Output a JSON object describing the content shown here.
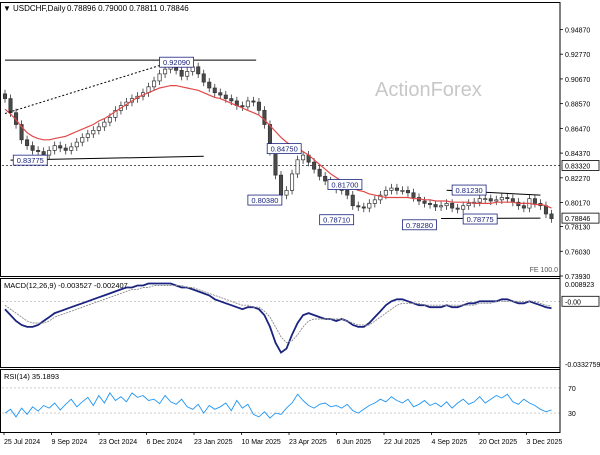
{
  "header": {
    "title_arrow": "▼",
    "symbol_label": "USDCHF,Daily",
    "quote_values": "0.78896 0.79000 0.78811 0.78846"
  },
  "watermark": "ActionForex",
  "colors": {
    "bull_candle": "#4a4a4a",
    "bear_candle": "#4a4a4a",
    "moving_average": "#e04848",
    "macd_main": "#1a237e",
    "macd_signal": "#8c8c8c",
    "rsi_line": "#2196f3",
    "trend_line": "#000000",
    "label_border": "#1a237e",
    "label_text": "#1a237e",
    "separator": "#000000",
    "grid_line": "#b0b0b0"
  },
  "chart_data": [
    {
      "type": "candlestick",
      "name": "price-panel",
      "ylim": [
        0.7393,
        0.9593
      ],
      "y_ticks": [
        "0.94870",
        "0.92770",
        "0.90670",
        "0.88570",
        "0.86470",
        "0.84370",
        "0.82270",
        "0.80170",
        "0.78130",
        "0.76030",
        "0.73930"
      ],
      "x_ticks": [
        "25 Jul 2024",
        "9 Sep 2024",
        "23 Oct 2024",
        "6 Dec 2024",
        "23 Jan 2025",
        "10 Mar 2025",
        "23 Apr 2025",
        "6 Jun 2025",
        "22 Jul 2025",
        "4 Sep 2025",
        "20 Oct 2025",
        "3 Dec 2025"
      ],
      "x_range": [
        0,
        100
      ],
      "closes": [
        0.89,
        0.878,
        0.868,
        0.855,
        0.85,
        0.846,
        0.845,
        0.842,
        0.846,
        0.85,
        0.848,
        0.846,
        0.849,
        0.853,
        0.857,
        0.86,
        0.863,
        0.866,
        0.87,
        0.874,
        0.88,
        0.884,
        0.887,
        0.89,
        0.892,
        0.895,
        0.9,
        0.905,
        0.911,
        0.915,
        0.917,
        0.914,
        0.909,
        0.913,
        0.917,
        0.911,
        0.904,
        0.899,
        0.895,
        0.893,
        0.89,
        0.888,
        0.884,
        0.883,
        0.888,
        0.887,
        0.88,
        0.868,
        0.845,
        0.825,
        0.808,
        0.812,
        0.826,
        0.838,
        0.842,
        0.836,
        0.83,
        0.824,
        0.82,
        0.818,
        0.813,
        0.812,
        0.808,
        0.799,
        0.798,
        0.797,
        0.801,
        0.804,
        0.808,
        0.812,
        0.814,
        0.812,
        0.812,
        0.81,
        0.806,
        0.803,
        0.801,
        0.8,
        0.798,
        0.799,
        0.801,
        0.797,
        0.796,
        0.799,
        0.801,
        0.802,
        0.805,
        0.805,
        0.803,
        0.804,
        0.806,
        0.805,
        0.802,
        0.799,
        0.797,
        0.805,
        0.801,
        0.799,
        0.792,
        0.788
      ],
      "moving_average": [
        0.881,
        0.877,
        0.872,
        0.866,
        0.861,
        0.858,
        0.856,
        0.855,
        0.855,
        0.856,
        0.857,
        0.858,
        0.86,
        0.862,
        0.864,
        0.866,
        0.868,
        0.871,
        0.873,
        0.876,
        0.879,
        0.882,
        0.885,
        0.888,
        0.891,
        0.893,
        0.895,
        0.897,
        0.899,
        0.9,
        0.901,
        0.901,
        0.9,
        0.899,
        0.898,
        0.897,
        0.895,
        0.893,
        0.891,
        0.89,
        0.888,
        0.886,
        0.884,
        0.882,
        0.88,
        0.878,
        0.876,
        0.872,
        0.867,
        0.862,
        0.857,
        0.853,
        0.85,
        0.848,
        0.845,
        0.842,
        0.838,
        0.834,
        0.83,
        0.826,
        0.823,
        0.82,
        0.817,
        0.814,
        0.812,
        0.811,
        0.809,
        0.808,
        0.807,
        0.806,
        0.806,
        0.806,
        0.806,
        0.806,
        0.805,
        0.805,
        0.804,
        0.804,
        0.803,
        0.803,
        0.803,
        0.802,
        0.802,
        0.802,
        0.802,
        0.801,
        0.801,
        0.801,
        0.801,
        0.802,
        0.802,
        0.802,
        0.802,
        0.801,
        0.801,
        0.801,
        0.8,
        0.8,
        0.799,
        0.797
      ],
      "horizontal_level": {
        "value": 0.8332,
        "label": "0.83320"
      },
      "current_price": {
        "value": 0.78846,
        "label": "0.78846"
      },
      "trend_lines": [
        {
          "style": "solid",
          "points": [
            [
              0,
              0.9227
            ],
            [
              45.5,
              0.9227
            ]
          ]
        },
        {
          "style": "dashed",
          "points": [
            [
              0,
              0.8773
            ],
            [
              30.0,
              0.921
            ]
          ]
        },
        {
          "style": "solid",
          "points": [
            [
              1,
              0.8377
            ],
            [
              36.0,
              0.841
            ]
          ]
        },
        {
          "style": "solid",
          "points": [
            [
              80.0,
              0.8121
            ],
            [
              97.0,
              0.808
            ]
          ]
        },
        {
          "style": "solid",
          "points": [
            [
              79.0,
              0.7881
            ],
            [
              97.0,
              0.7885
            ]
          ]
        }
      ],
      "price_labels": [
        {
          "text": "0.92090",
          "x": 28.0,
          "y": 0.9209
        },
        {
          "text": "0.83775",
          "x": 1.5,
          "y": 0.8377
        },
        {
          "text": "0.84750",
          "x": 47.5,
          "y": 0.8475
        },
        {
          "text": "0.80380",
          "x": 44.0,
          "y": 0.8038
        },
        {
          "text": "0.78710",
          "x": 57.0,
          "y": 0.7871
        },
        {
          "text": "0.81700",
          "x": 58.5,
          "y": 0.817
        },
        {
          "text": "0.78280",
          "x": 72.0,
          "y": 0.7828
        },
        {
          "text": "0.81230",
          "x": 81.0,
          "y": 0.8123
        },
        {
          "text": "0.78775",
          "x": 83.0,
          "y": 0.7877
        }
      ],
      "annotation": "FE 100.0"
    },
    {
      "type": "line",
      "name": "macd-panel",
      "label": "MACD(12,26,9) -0.003527 -0.002407",
      "ylim": [
        -0.0333,
        0.0118
      ],
      "y_ticks": [
        "0.008923",
        "0.00",
        "-0.0332759"
      ],
      "zero_line": 0,
      "current_label": "-0.00",
      "series": [
        {
          "role": "macd",
          "values": [
            -0.004,
            -0.007,
            -0.01,
            -0.012,
            -0.013,
            -0.013,
            -0.012,
            -0.01,
            -0.008,
            -0.006,
            -0.005,
            -0.004,
            -0.003,
            -0.002,
            -0.001,
            0.0,
            0.001,
            0.002,
            0.003,
            0.004,
            0.005,
            0.006,
            0.007,
            0.007,
            0.008,
            0.008,
            0.009,
            0.009,
            0.009,
            0.009,
            0.009,
            0.008,
            0.007,
            0.007,
            0.006,
            0.005,
            0.004,
            0.003,
            0.001,
            0.0,
            -0.001,
            -0.002,
            -0.003,
            -0.004,
            -0.003,
            -0.003,
            -0.004,
            -0.007,
            -0.013,
            -0.021,
            -0.026,
            -0.024,
            -0.017,
            -0.011,
            -0.007,
            -0.006,
            -0.007,
            -0.008,
            -0.009,
            -0.009,
            -0.01,
            -0.009,
            -0.01,
            -0.012,
            -0.013,
            -0.013,
            -0.011,
            -0.008,
            -0.005,
            -0.002,
            0.0,
            0.001,
            0.001,
            0.0,
            -0.001,
            -0.002,
            -0.002,
            -0.003,
            -0.003,
            -0.003,
            -0.002,
            -0.003,
            -0.003,
            -0.002,
            -0.001,
            -0.001,
            0.0,
            0.0,
            0.0,
            0.0,
            0.001,
            0.001,
            0.0,
            -0.001,
            -0.001,
            0.0,
            -0.001,
            -0.002,
            -0.003,
            -0.0035
          ]
        },
        {
          "role": "signal",
          "values": [
            -0.002,
            -0.004,
            -0.006,
            -0.008,
            -0.01,
            -0.011,
            -0.011,
            -0.011,
            -0.01,
            -0.008,
            -0.007,
            -0.006,
            -0.005,
            -0.004,
            -0.003,
            -0.002,
            -0.001,
            0.0,
            0.001,
            0.002,
            0.003,
            0.004,
            0.005,
            0.006,
            0.006,
            0.007,
            0.007,
            0.008,
            0.008,
            0.008,
            0.008,
            0.008,
            0.008,
            0.007,
            0.007,
            0.006,
            0.005,
            0.004,
            0.003,
            0.002,
            0.001,
            0.0,
            -0.001,
            -0.002,
            -0.002,
            -0.003,
            -0.003,
            -0.005,
            -0.008,
            -0.013,
            -0.018,
            -0.021,
            -0.02,
            -0.017,
            -0.013,
            -0.01,
            -0.009,
            -0.009,
            -0.009,
            -0.009,
            -0.009,
            -0.009,
            -0.01,
            -0.011,
            -0.012,
            -0.012,
            -0.012,
            -0.01,
            -0.008,
            -0.006,
            -0.004,
            -0.002,
            -0.001,
            -0.001,
            -0.001,
            -0.001,
            -0.002,
            -0.002,
            -0.002,
            -0.002,
            -0.002,
            -0.002,
            -0.002,
            -0.002,
            -0.002,
            -0.002,
            -0.001,
            -0.001,
            -0.001,
            0.0,
            0.0,
            0.0,
            0.0,
            0.0,
            0.0,
            0.0,
            0.0,
            -0.001,
            -0.002,
            -0.0024
          ]
        }
      ]
    },
    {
      "type": "line",
      "name": "rsi-panel",
      "label": "RSI(14) 35.1893",
      "ylim": [
        0,
        100
      ],
      "y_ticks": [
        70,
        30
      ],
      "series": [
        {
          "role": "rsi",
          "values": [
            30,
            36,
            24,
            38,
            28,
            40,
            33,
            42,
            38,
            46,
            35,
            44,
            52,
            40,
            48,
            55,
            42,
            58,
            46,
            62,
            50,
            56,
            48,
            62,
            55,
            58,
            50,
            52,
            45,
            58,
            48,
            44,
            52,
            40,
            36,
            44,
            30,
            42,
            36,
            40,
            46,
            34,
            50,
            38,
            44,
            28,
            24,
            32,
            22,
            30,
            28,
            38,
            46,
            60,
            50,
            42,
            38,
            44,
            46,
            40,
            42,
            38,
            44,
            34,
            30,
            36,
            42,
            46,
            52,
            48,
            56,
            50,
            46,
            52,
            40,
            44,
            50,
            42,
            46,
            40,
            48,
            38,
            46,
            52,
            44,
            48,
            56,
            46,
            52,
            58,
            54,
            60,
            48,
            44,
            52,
            46,
            42,
            36,
            32,
            35
          ]
        }
      ]
    }
  ]
}
